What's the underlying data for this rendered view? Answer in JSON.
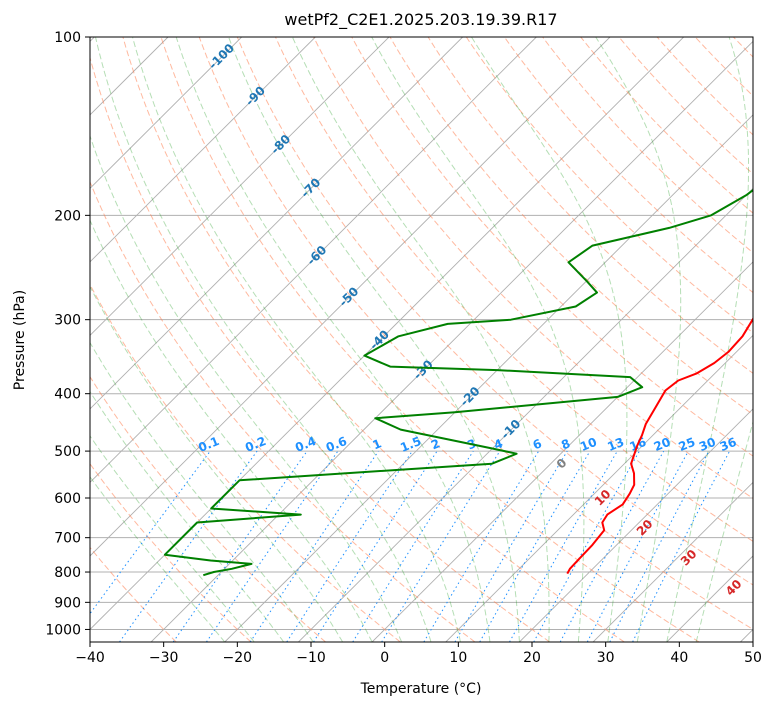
{
  "chart_data": {
    "type": "line",
    "title": "wetPf2_C2E1.2025.203.19.39.R17",
    "xlabel": "Temperature (°C)",
    "ylabel": "Pressure (hPa)",
    "xlim": [
      -40,
      50
    ],
    "ylim": [
      1050,
      100
    ],
    "y_scale": "log",
    "x_ticks": [
      "−40",
      "−30",
      "−20",
      "−10",
      "0",
      "10",
      "20",
      "30",
      "40",
      "50"
    ],
    "x_tick_values": [
      -40,
      -30,
      -20,
      -10,
      0,
      10,
      20,
      30,
      40,
      50
    ],
    "y_ticks": [
      "100",
      "200",
      "300",
      "400",
      "500",
      "600",
      "700",
      "800",
      "900",
      "1000"
    ],
    "y_tick_values": [
      100,
      200,
      300,
      400,
      500,
      600,
      700,
      800,
      900,
      1000
    ],
    "grid": true,
    "series": [
      {
        "role": "temperature",
        "color": "#ff0000",
        "points": [
          [
            17.2,
            805
          ],
          [
            16.9,
            790
          ],
          [
            16.8,
            760
          ],
          [
            16.7,
            720
          ],
          [
            16.3,
            680
          ],
          [
            15.0,
            660
          ],
          [
            14.6,
            640
          ],
          [
            15.3,
            615
          ],
          [
            14.8,
            590
          ],
          [
            14.2,
            570
          ],
          [
            12.6,
            545
          ],
          [
            10.9,
            525
          ],
          [
            10.0,
            505
          ],
          [
            9.3,
            490
          ],
          [
            8.5,
            470
          ],
          [
            7.5,
            450
          ],
          [
            6.5,
            420
          ],
          [
            5.6,
            395
          ],
          [
            6.0,
            380
          ],
          [
            7.5,
            370
          ],
          [
            8.5,
            355
          ],
          [
            8.9,
            340
          ],
          [
            8.7,
            320
          ],
          [
            7.8,
            300
          ],
          [
            7.0,
            285
          ],
          [
            6.3,
            270
          ],
          [
            6.0,
            250
          ],
          [
            6.0,
            230
          ],
          [
            5.6,
            210
          ],
          [
            5.0,
            195
          ],
          [
            4.6,
            180
          ],
          [
            5.0,
            165
          ],
          [
            5.8,
            155
          ],
          [
            6.8,
            145
          ],
          [
            7.6,
            135
          ],
          [
            8.5,
            125
          ],
          [
            8.6,
            118
          ],
          [
            9.3,
            112
          ],
          [
            11.5,
            106
          ],
          [
            14.6,
            100
          ]
        ]
      },
      {
        "role": "dewpoint",
        "color": "#008000",
        "points": [
          [
            -32,
            810
          ],
          [
            -31,
            800
          ],
          [
            -29,
            790
          ],
          [
            -27,
            775
          ],
          [
            -33,
            765
          ],
          [
            -40,
            748
          ],
          [
            -40,
            660
          ],
          [
            -27,
            640
          ],
          [
            -40,
            625
          ],
          [
            -40,
            560
          ],
          [
            -8,
            525
          ],
          [
            -6,
            505
          ],
          [
            -10,
            495
          ],
          [
            -25,
            460
          ],
          [
            -30,
            440
          ],
          [
            -20,
            430
          ],
          [
            0,
            405
          ],
          [
            2,
            390
          ],
          [
            -1,
            375
          ],
          [
            -20,
            365
          ],
          [
            -35,
            360
          ],
          [
            -40,
            345
          ],
          [
            -38,
            320
          ],
          [
            -33,
            305
          ],
          [
            -25,
            300
          ],
          [
            -18,
            285
          ],
          [
            -17,
            270
          ],
          [
            -20,
            258
          ],
          [
            -25,
            240
          ],
          [
            -24,
            225
          ],
          [
            -16,
            210
          ],
          [
            -12,
            200
          ],
          [
            -10,
            185
          ],
          [
            -9,
            170
          ],
          [
            -10,
            160
          ],
          [
            -12,
            150
          ],
          [
            -12,
            143
          ],
          [
            -10,
            137
          ],
          [
            -5,
            130
          ],
          [
            -1,
            120
          ],
          [
            3,
            108
          ],
          [
            4,
            100
          ]
        ]
      }
    ],
    "isotherm_labels": [
      "-100",
      "-90",
      "-80",
      "-70",
      "-60",
      "-50",
      "-40",
      "-30",
      "-20",
      "-10"
    ],
    "isotherm_label_values": [
      -100,
      -90,
      -80,
      -70,
      -60,
      -50,
      -40,
      -30,
      -20,
      -10
    ],
    "mixing_ratio_labels": [
      "0.1",
      "0.2",
      "0.4",
      "0.6",
      "1",
      "1.5",
      "2",
      "3",
      "4",
      "6",
      "8",
      "10",
      "13",
      "16",
      "20",
      "25",
      "30",
      "36"
    ],
    "mixing_ratio_values": [
      0.1,
      0.2,
      0.4,
      0.6,
      1,
      1.5,
      2,
      3,
      4,
      6,
      8,
      10,
      13,
      16,
      20,
      25,
      30,
      36
    ],
    "wet_adiabat_labels": [
      "0",
      "10",
      "20",
      "30",
      "40"
    ],
    "wet_adiabat_values": [
      0,
      10,
      20,
      30,
      40
    ],
    "colors": {
      "temperature": "#ff0000",
      "dewpoint": "#008000",
      "isotherm_label": "#1f77b4",
      "mixing_ratio": "#1e90ff",
      "dry_adiabat": "#ff7f50",
      "moist_adiabat": "#2ca02c",
      "wet_label_zero": "#808080",
      "wet_label": "#d62728",
      "grid": "#b0b0b0"
    }
  }
}
